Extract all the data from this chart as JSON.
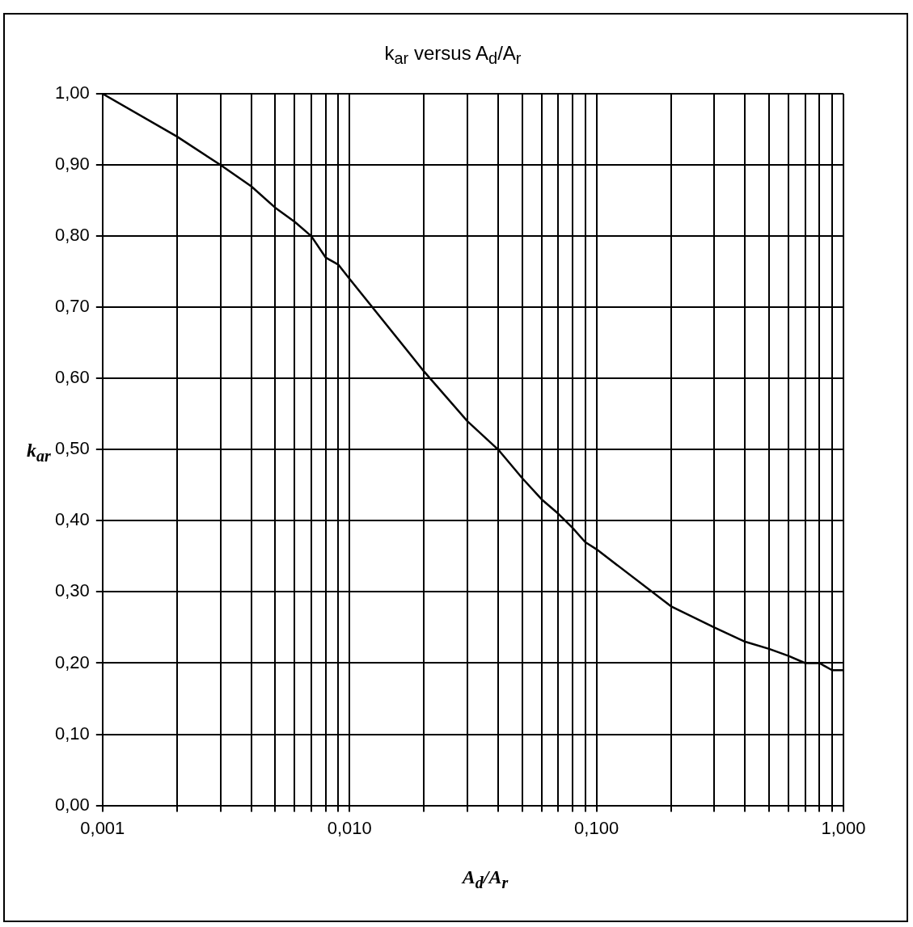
{
  "chart_data": {
    "type": "line",
    "title": "k$_{ar}$ versus A$_{d}$/A$_{r}$",
    "xlabel": "A$_{d}$/A$_{r}$",
    "ylabel": "k$_{ar}$",
    "x": [
      0.001,
      0.002,
      0.003,
      0.004,
      0.005,
      0.006,
      0.007,
      0.008,
      0.009,
      0.01,
      0.02,
      0.03,
      0.04,
      0.05,
      0.06,
      0.07,
      0.08,
      0.09,
      0.1,
      0.2,
      0.3,
      0.4,
      0.5,
      0.6,
      0.7,
      0.8,
      0.9,
      1
    ],
    "series": [
      {
        "color": "#000000",
        "values": [
          1.0,
          0.94,
          0.9,
          0.87,
          0.84,
          0.82,
          0.8,
          0.77,
          0.76,
          0.74,
          0.61,
          0.54,
          0.5,
          0.46,
          0.43,
          0.41,
          0.39,
          0.37,
          0.36,
          0.28,
          0.25,
          0.23,
          0.22,
          0.21,
          0.2,
          0.2,
          0.19,
          0.19
        ]
      }
    ],
    "log": "x",
    "xlim": [
      0.001,
      1
    ],
    "ylim": [
      0,
      1
    ],
    "xticks": [
      {
        "value": 0.001,
        "label": "0,001"
      },
      {
        "value": 0.002,
        "label": null
      },
      {
        "value": 0.003,
        "label": null
      },
      {
        "value": 0.004,
        "label": null
      },
      {
        "value": 0.005,
        "label": null
      },
      {
        "value": 0.006,
        "label": null
      },
      {
        "value": 0.007,
        "label": null
      },
      {
        "value": 0.008,
        "label": null
      },
      {
        "value": 0.009,
        "label": null
      },
      {
        "value": 0.01,
        "label": "0,010"
      },
      {
        "value": 0.02,
        "label": null
      },
      {
        "value": 0.03,
        "label": null
      },
      {
        "value": 0.04,
        "label": null
      },
      {
        "value": 0.05,
        "label": null
      },
      {
        "value": 0.06,
        "label": null
      },
      {
        "value": 0.07,
        "label": null
      },
      {
        "value": 0.08,
        "label": null
      },
      {
        "value": 0.09,
        "label": null
      },
      {
        "value": 0.1,
        "label": "0,100"
      },
      {
        "value": 0.2,
        "label": null
      },
      {
        "value": 0.3,
        "label": null
      },
      {
        "value": 0.4,
        "label": null
      },
      {
        "value": 0.5,
        "label": null
      },
      {
        "value": 0.6,
        "label": null
      },
      {
        "value": 0.7,
        "label": null
      },
      {
        "value": 0.8,
        "label": null
      },
      {
        "value": 0.9,
        "label": null
      },
      {
        "value": 1,
        "label": "1,000"
      }
    ],
    "yticks": [
      {
        "value": 0,
        "label": "0,00"
      },
      {
        "value": 0.1,
        "label": "0,10"
      },
      {
        "value": 0.2,
        "label": "0,20"
      },
      {
        "value": 0.3,
        "label": "0,30"
      },
      {
        "value": 0.4,
        "label": "0,40"
      },
      {
        "value": 0.5,
        "label": "0,50"
      },
      {
        "value": 0.6,
        "label": "0,60"
      },
      {
        "value": 0.7,
        "label": "0,70"
      },
      {
        "value": 0.8,
        "label": "0,80"
      },
      {
        "value": 0.9,
        "label": "0,90"
      },
      {
        "value": 1,
        "label": "1,00"
      }
    ],
    "grid": true,
    "legend": false,
    "marker": "none",
    "line_style": "solid"
  }
}
